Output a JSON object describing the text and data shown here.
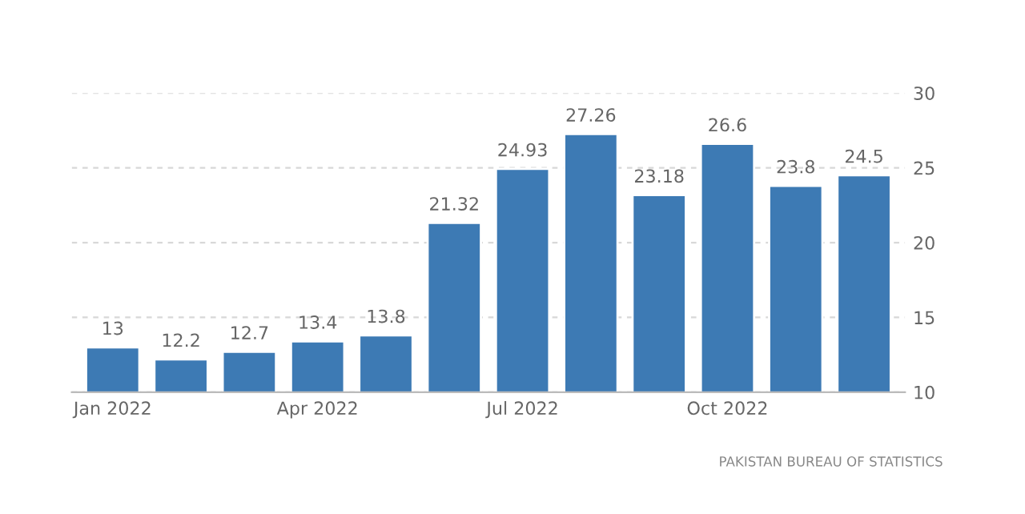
{
  "chart_data": {
    "type": "bar",
    "categories": [
      "Jan 2022",
      null,
      null,
      "Apr 2022",
      null,
      null,
      "Jul 2022",
      null,
      null,
      "Oct 2022",
      null,
      null
    ],
    "values": [
      13,
      12.2,
      12.7,
      13.4,
      13.8,
      21.32,
      24.93,
      27.26,
      23.18,
      26.6,
      23.8,
      24.5
    ],
    "color": "#3d7ab4",
    "ylim": [
      10,
      30
    ],
    "yticks": [
      10,
      15,
      20,
      25,
      30
    ],
    "grid": "y",
    "data_labels": true,
    "annotations": [
      "PAKISTAN BUREAU OF STATISTICS"
    ]
  }
}
